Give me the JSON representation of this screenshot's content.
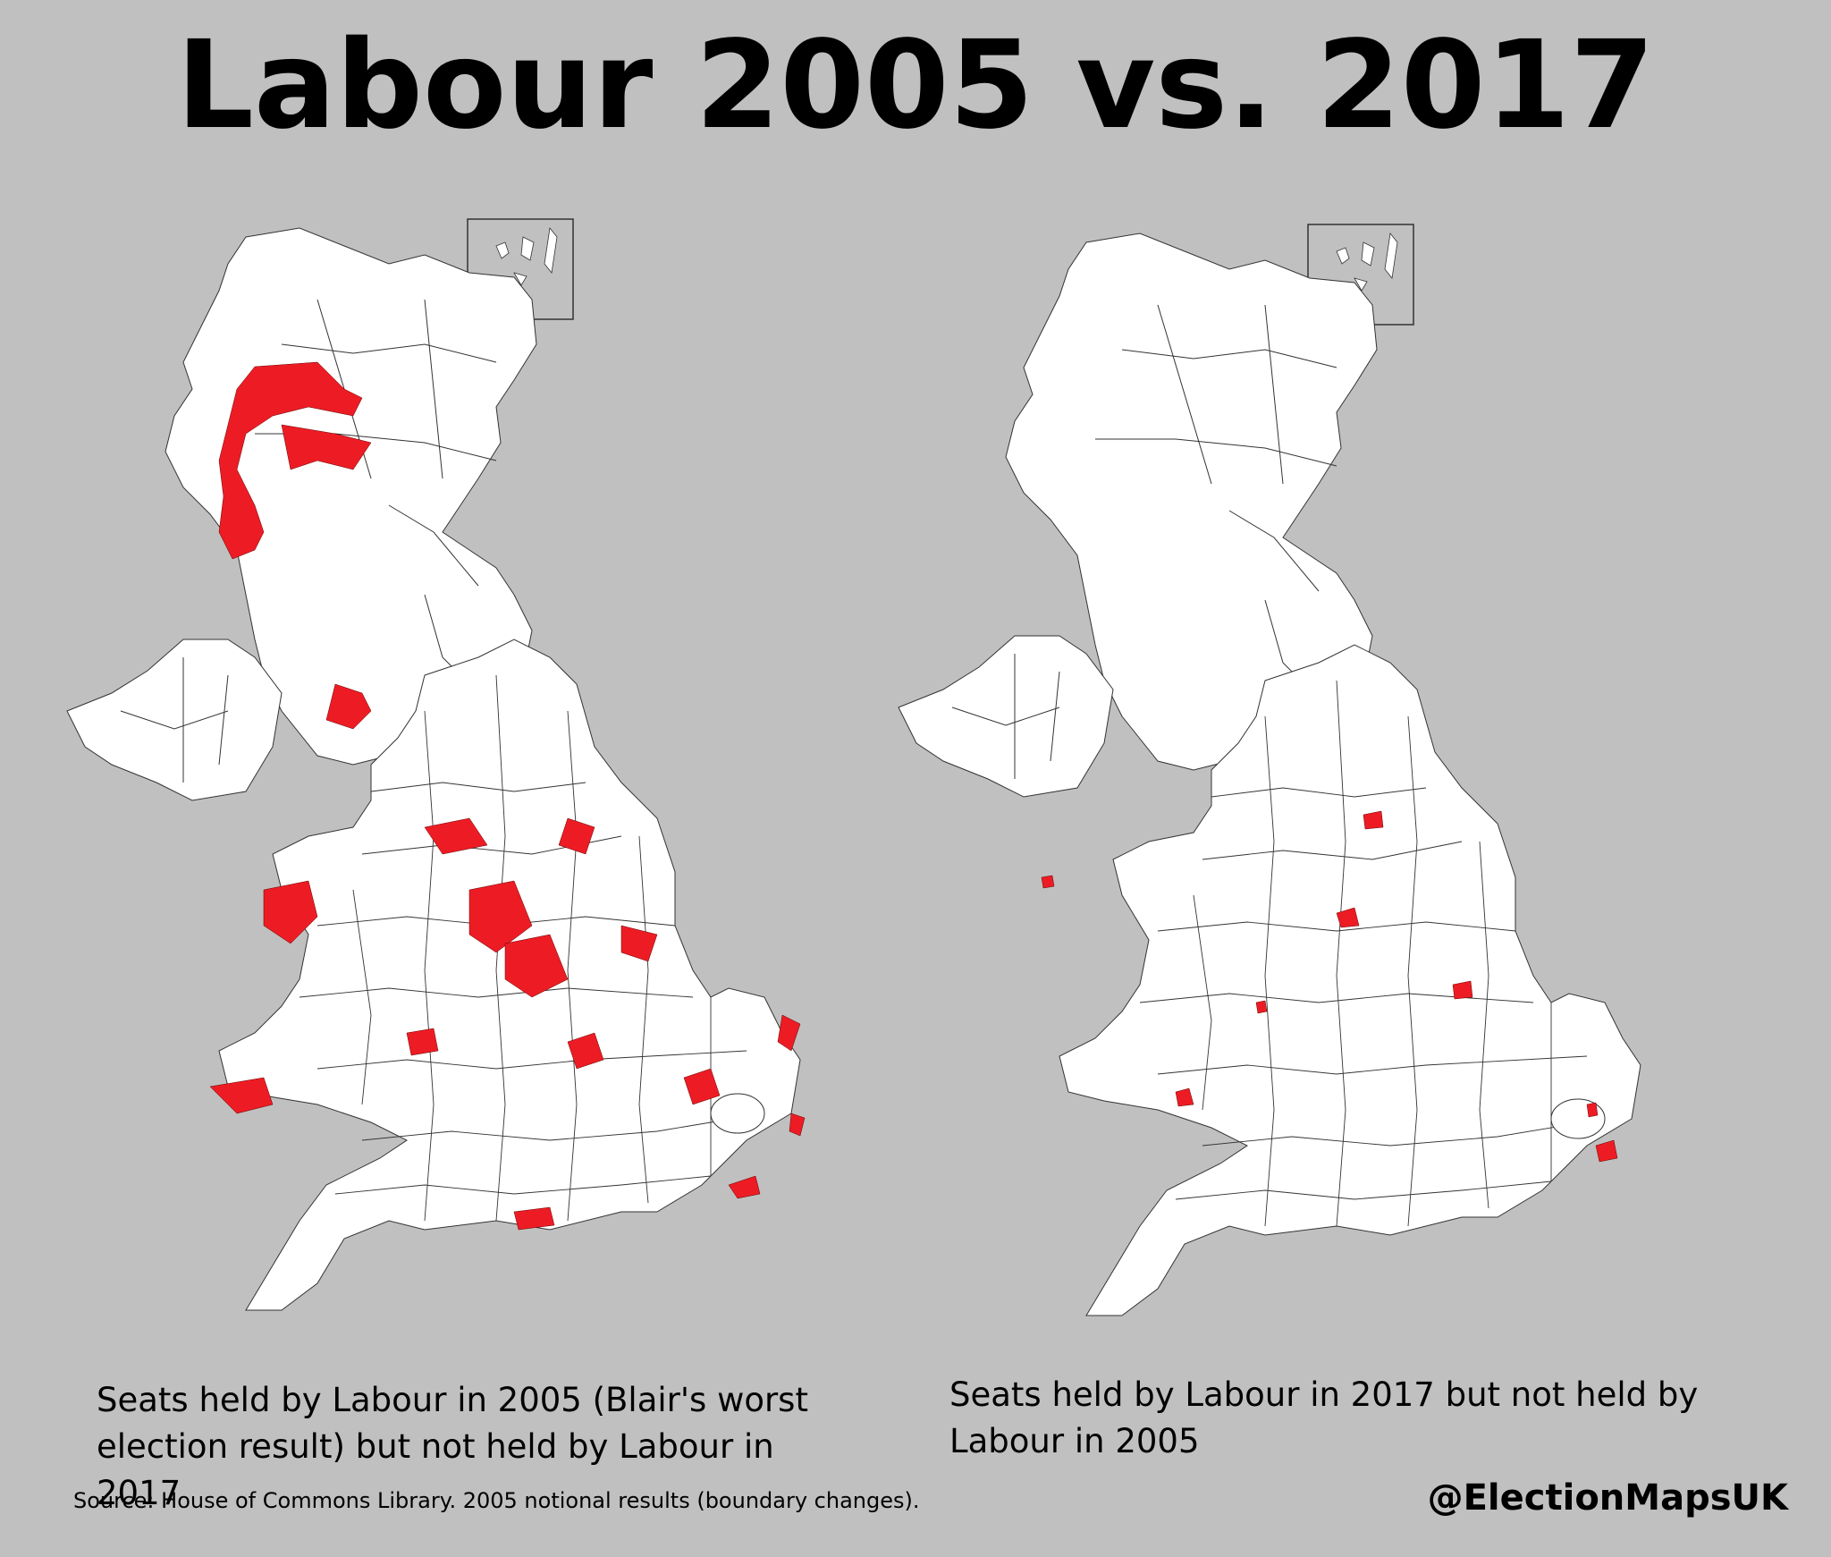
{
  "title": "Labour 2005 vs. 2017",
  "maps": [
    {
      "caption": "Seats held by Labour in 2005 (Blair's worst election result) but not held by Labour in 2017"
    },
    {
      "caption": "Seats held by Labour in 2017 but not held by Labour  in 2005"
    }
  ],
  "source": "Source: House of Commons Library.  2005 notional results (boundary changes).",
  "handle": "@ElectionMapsUK",
  "colors": {
    "background": "#c0c0c0",
    "land": "#ffffff",
    "boundary": "#333333",
    "highlight": "#ed1c24"
  }
}
